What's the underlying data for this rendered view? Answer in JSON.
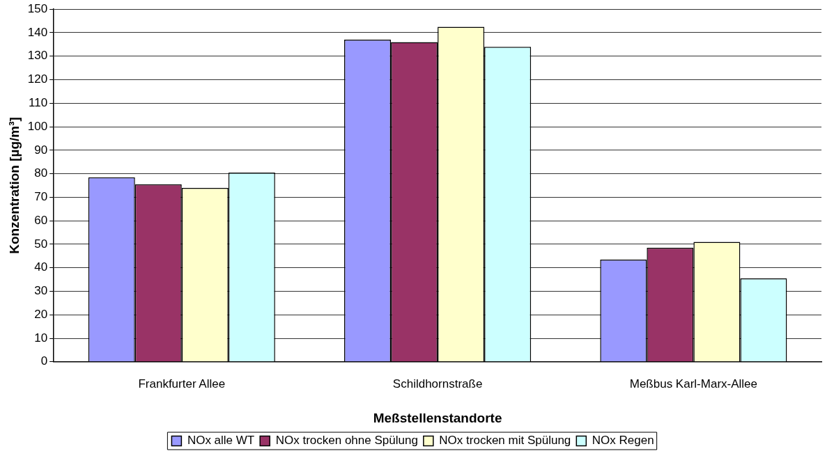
{
  "chart_data": {
    "type": "bar",
    "xlabel": "Meßstellenstandorte",
    "ylabel": "Konzentration [µg/m³]",
    "categories": [
      "Frankfurter Allee",
      "Schildhornstraße",
      "Meßbus Karl-Marx-Allee"
    ],
    "series": [
      {
        "name": "NOx alle WT",
        "color": "#9999ff",
        "values": [
          78.5,
          137,
          43.5
        ]
      },
      {
        "name": "NOx trocken ohne Spülung",
        "color": "#993366",
        "values": [
          75.5,
          136,
          48.5
        ]
      },
      {
        "name": "NOx trocken mit Spülung",
        "color": "#ffffcc",
        "values": [
          74,
          142.5,
          51
        ]
      },
      {
        "name": "NOx Regen",
        "color": "#ccffff",
        "values": [
          80.5,
          134,
          35.5
        ]
      }
    ],
    "ylim": [
      0,
      150
    ],
    "yticks": [
      0,
      10,
      20,
      30,
      40,
      50,
      60,
      70,
      80,
      90,
      100,
      110,
      120,
      130,
      140,
      150
    ],
    "grid": "y",
    "legend": "bottom"
  }
}
